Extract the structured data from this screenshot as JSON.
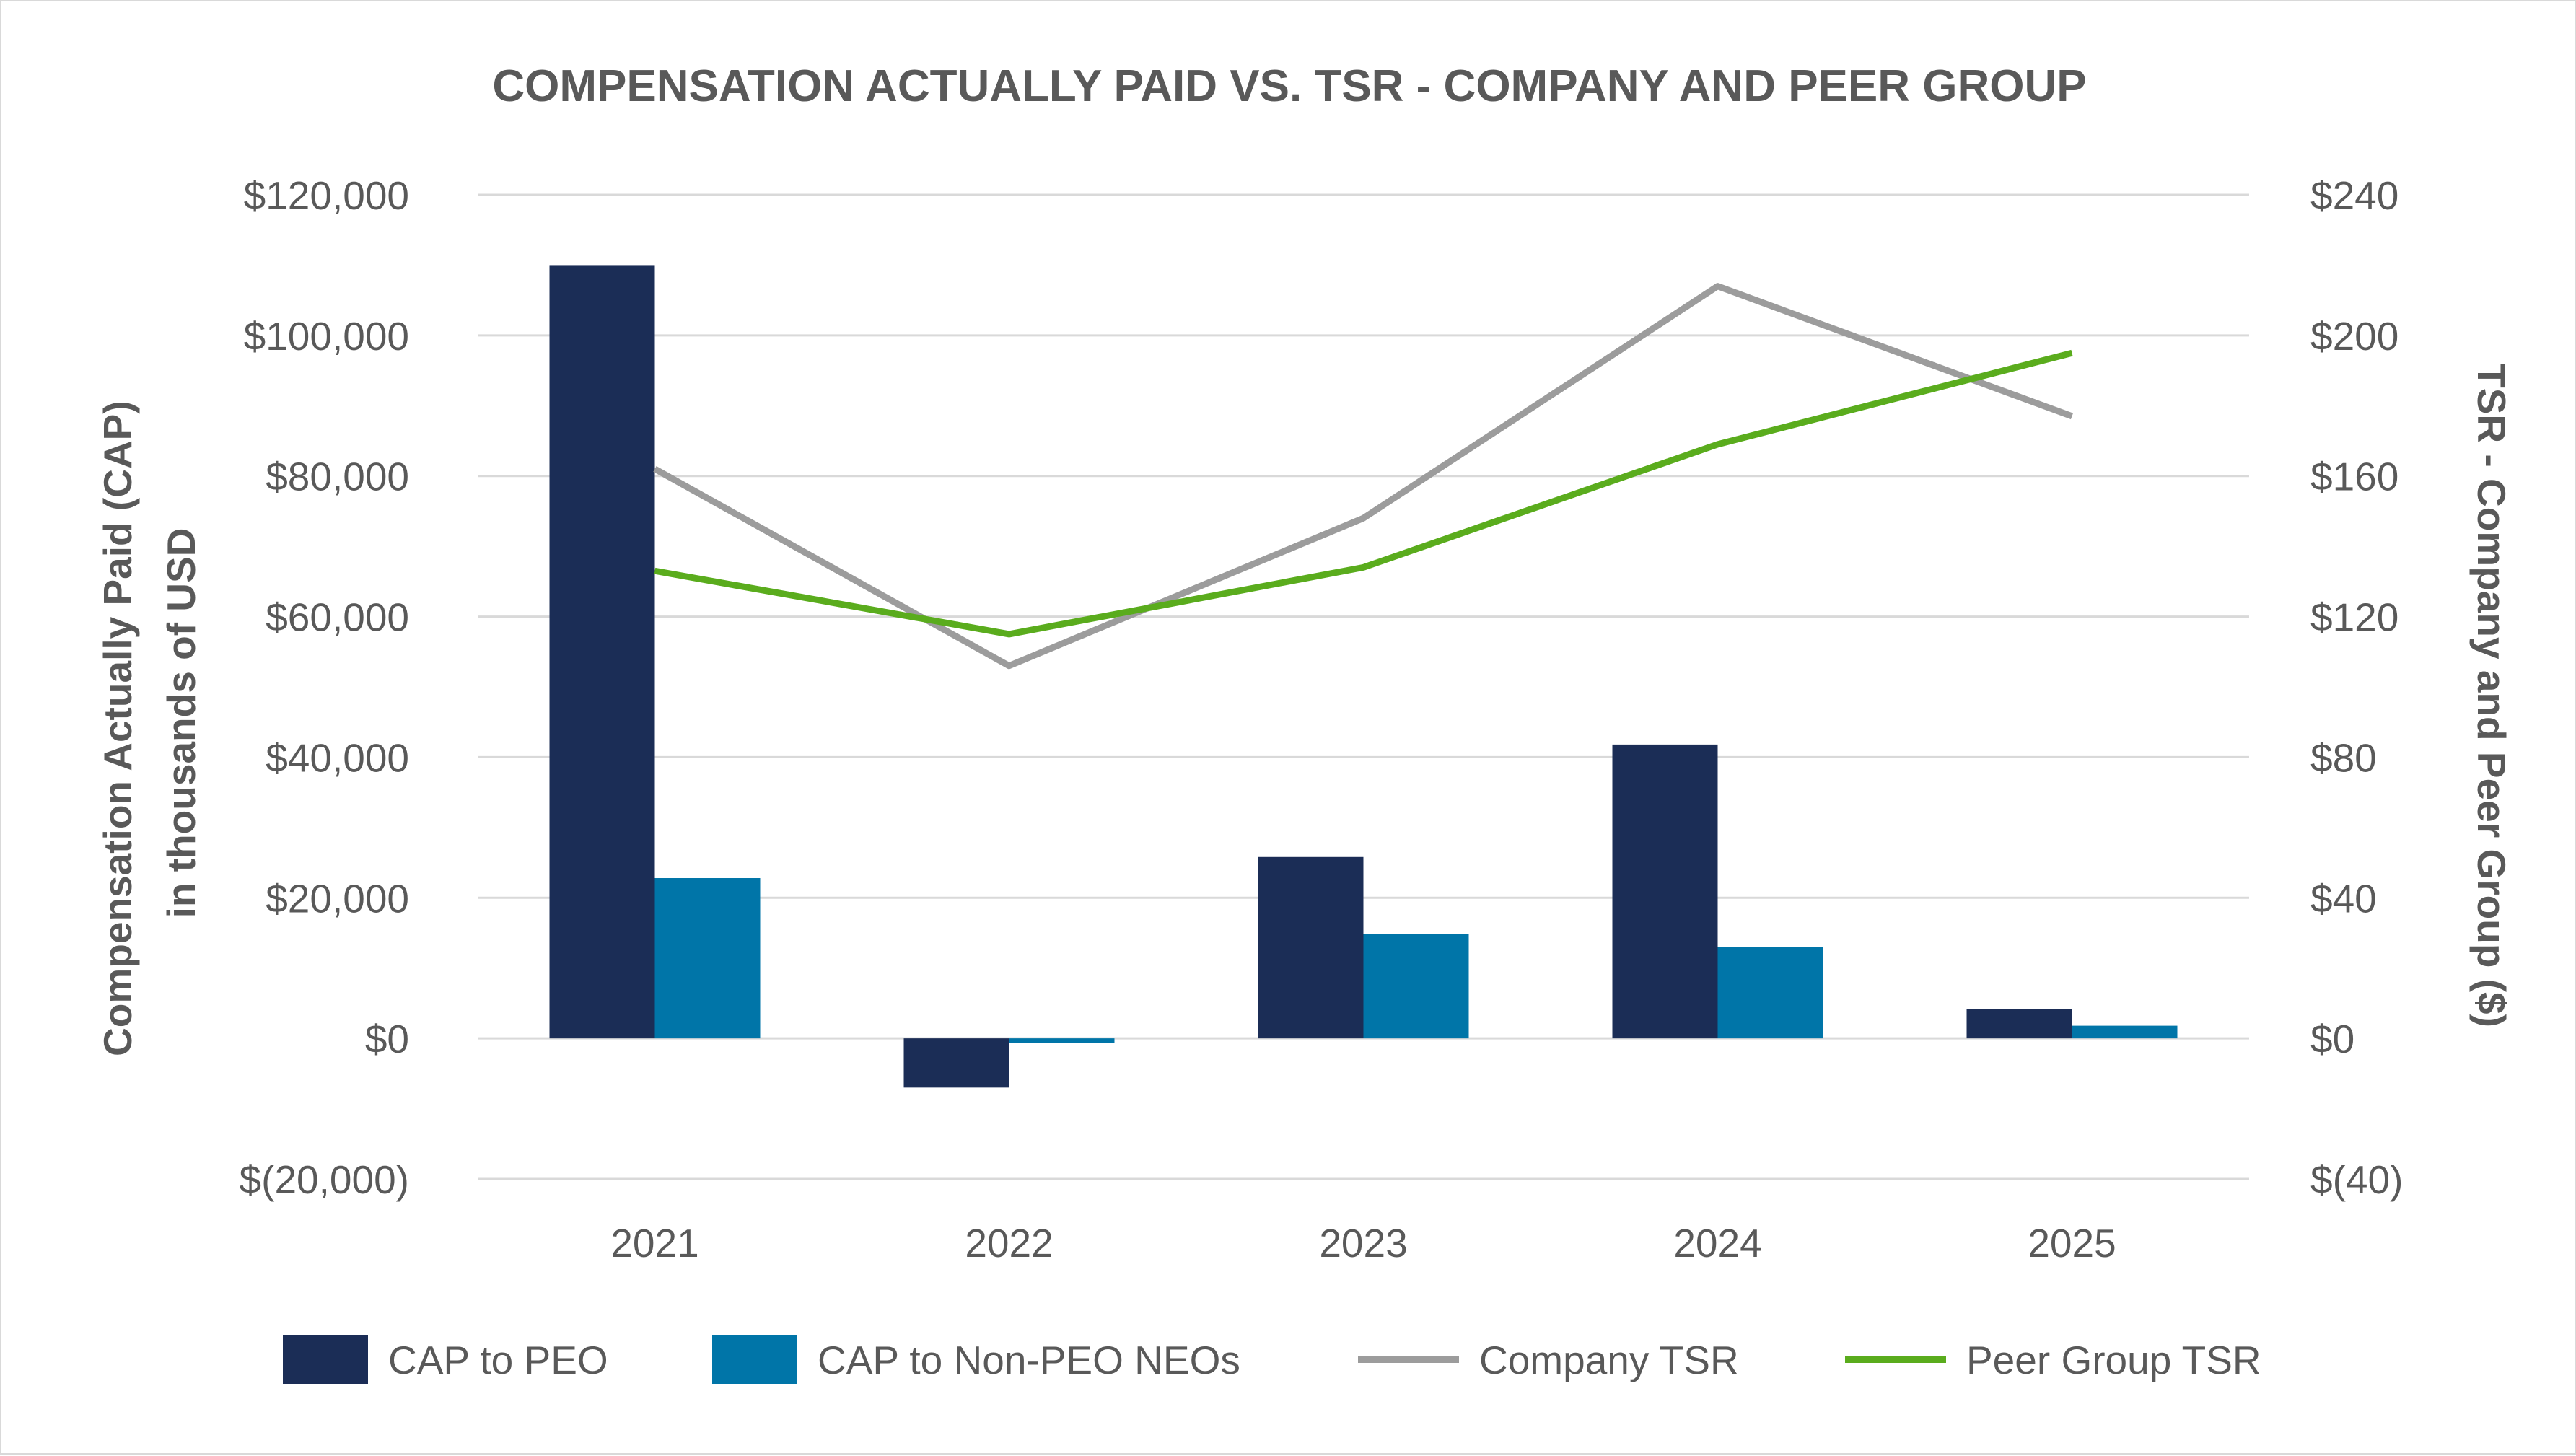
{
  "chart_data": {
    "type": "bar",
    "title": "COMPENSATION ACTUALLY PAID VS. TSR - COMPANY AND PEER GROUP",
    "categories": [
      "2021",
      "2022",
      "2023",
      "2024",
      "2025"
    ],
    "ylabel_lines": [
      "Compensation Actually Paid (CAP)",
      "in thousands of USD"
    ],
    "y2label": "TSR - Company and Peer Group ($)",
    "ylim": [
      -20000,
      120000
    ],
    "y2lim": [
      -40,
      240
    ],
    "yticks": [
      -20000,
      0,
      20000,
      40000,
      60000,
      80000,
      100000,
      120000
    ],
    "ytick_labels": [
      "$(20,000)",
      "$0",
      "$20,000",
      "$40,000",
      "$60,000",
      "$80,000",
      "$100,000",
      "$120,000"
    ],
    "y2ticks": [
      -40,
      0,
      40,
      80,
      120,
      160,
      200,
      240
    ],
    "y2tick_labels": [
      "$(40)",
      "$0",
      "$40",
      "$80",
      "$120",
      "$160",
      "$200",
      "$240"
    ],
    "grid": true,
    "legend_position": "bottom",
    "bar_series": [
      {
        "name": "CAP to PEO",
        "color": "#1b2d56",
        "values": [
          110000,
          -7000,
          25800,
          41800,
          4200
        ]
      },
      {
        "name": "CAP to Non-PEO NEOs",
        "color": "#0075a8",
        "values": [
          22800,
          -700,
          14800,
          13000,
          1800
        ]
      }
    ],
    "line_series": [
      {
        "name": "Company TSR",
        "color": "#9c9c9c",
        "axis": "y2",
        "values": [
          162,
          106,
          148,
          214,
          177
        ]
      },
      {
        "name": "Peer Group TSR",
        "color": "#5aac1d",
        "axis": "y2",
        "values": [
          133,
          115,
          134,
          169,
          195
        ]
      }
    ]
  }
}
